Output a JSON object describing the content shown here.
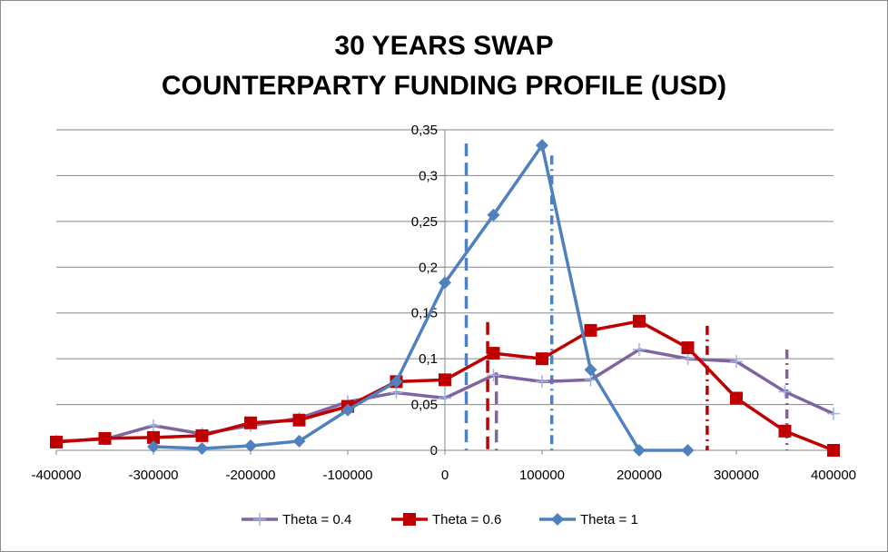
{
  "chart_data": {
    "type": "line",
    "title": [
      "30 YEARS SWAP",
      "COUNTERPARTY FUNDING PROFILE (USD)"
    ],
    "xlabel": "",
    "ylabel": "",
    "xlim": [
      -400000,
      400000
    ],
    "ylim": [
      0,
      0.35
    ],
    "x_ticks": [
      -400000,
      -300000,
      -200000,
      -100000,
      0,
      100000,
      200000,
      300000,
      400000
    ],
    "x_tick_labels": [
      "-400000",
      "-300000",
      "-200000",
      "-100000",
      "0",
      "100000",
      "200000",
      "300000",
      "400000"
    ],
    "y_ticks": [
      0,
      0.05,
      0.1,
      0.15,
      0.2,
      0.25,
      0.3,
      0.35
    ],
    "y_tick_labels": [
      "0",
      "0,05",
      "0,1",
      "0,15",
      "0,2",
      "0,25",
      "0,3",
      "0,35"
    ],
    "grid": true,
    "legend_position": "bottom",
    "series": [
      {
        "name": "Theta = 0.4",
        "color": "#8064a2",
        "marker": "plus",
        "x": [
          -400000,
          -350000,
          -300000,
          -250000,
          -200000,
          -150000,
          -100000,
          -50000,
          0,
          50000,
          100000,
          150000,
          200000,
          250000,
          300000,
          350000,
          400000
        ],
        "values": [
          0.01,
          0.012,
          0.027,
          0.018,
          0.027,
          0.035,
          0.053,
          0.063,
          0.057,
          0.082,
          0.075,
          0.077,
          0.11,
          0.1,
          0.097,
          0.064,
          0.04
        ]
      },
      {
        "name": "Theta = 0.6",
        "color": "#c00000",
        "marker": "square",
        "x": [
          -400000,
          -350000,
          -300000,
          -250000,
          -200000,
          -150000,
          -100000,
          -50000,
          0,
          50000,
          100000,
          150000,
          200000,
          250000,
          300000,
          350000,
          400000
        ],
        "values": [
          0.009,
          0.013,
          0.014,
          0.016,
          0.03,
          0.033,
          0.048,
          0.075,
          0.077,
          0.106,
          0.1,
          0.131,
          0.141,
          0.112,
          0.057,
          0.021,
          0.0
        ]
      },
      {
        "name": "Theta = 1",
        "color": "#4f81bd",
        "marker": "diamond",
        "x": [
          -300000,
          -250000,
          -200000,
          -150000,
          -100000,
          -50000,
          0,
          50000,
          100000,
          150000,
          200000,
          250000
        ],
        "values": [
          0.004,
          0.002,
          0.005,
          0.01,
          0.044,
          0.075,
          0.183,
          0.257,
          0.333,
          0.088,
          0.0,
          0.0
        ]
      }
    ],
    "reference_lines": [
      {
        "color": "#4f81bd",
        "style": "dashed",
        "x": 22000,
        "y_top": 0.335
      },
      {
        "color": "#4f81bd",
        "style": "dashdot",
        "x": 110000,
        "y_top": 0.322
      },
      {
        "color": "#c00000",
        "style": "dashed",
        "x": 44000,
        "y_top": 0.14
      },
      {
        "color": "#c00000",
        "style": "dashdot",
        "x": 270000,
        "y_top": 0.136
      },
      {
        "color": "#8064a2",
        "style": "dashed",
        "x": 53000,
        "y_top": 0.085
      },
      {
        "color": "#8064a2",
        "style": "dashdot",
        "x": 352000,
        "y_top": 0.11
      }
    ]
  }
}
